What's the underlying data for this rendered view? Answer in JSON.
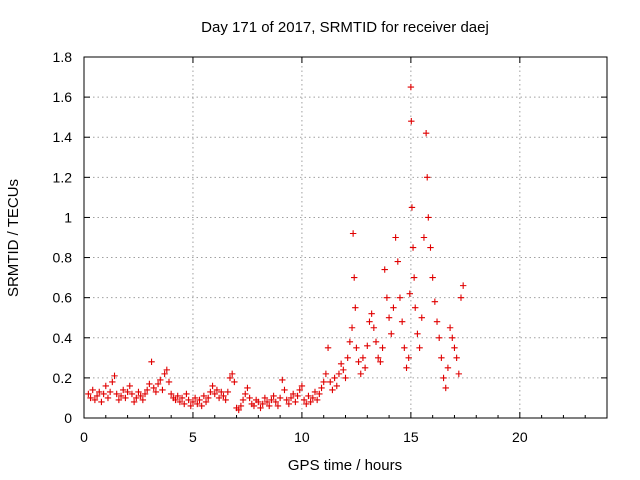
{
  "chart_data": {
    "type": "scatter",
    "title": "Day 171 of 2017, SRMTID for receiver daej",
    "xlabel": "GPS time / hours",
    "ylabel": "SRMTID / TECUs",
    "xlim": [
      0,
      24
    ],
    "ylim": [
      0,
      1.8
    ],
    "xticks": [
      0,
      5,
      10,
      15,
      20
    ],
    "xtick_labels": [
      "0",
      "5",
      "10",
      "15",
      "20"
    ],
    "yticks": [
      0,
      0.2,
      0.4,
      0.6,
      0.8,
      1,
      1.2,
      1.4,
      1.6,
      1.8
    ],
    "ytick_labels": [
      "0",
      "0.2",
      "0.4",
      "0.6",
      "0.8",
      "1",
      "1.2",
      "1.4",
      "1.6",
      "1.8"
    ],
    "grid": true,
    "marker": "+",
    "marker_color": "#e00000",
    "series": [
      {
        "name": "SRMTID",
        "points": [
          [
            0.2,
            0.12
          ],
          [
            0.3,
            0.1
          ],
          [
            0.4,
            0.14
          ],
          [
            0.5,
            0.09
          ],
          [
            0.6,
            0.11
          ],
          [
            0.7,
            0.13
          ],
          [
            0.8,
            0.08
          ],
          [
            0.9,
            0.12
          ],
          [
            1.0,
            0.16
          ],
          [
            1.1,
            0.1
          ],
          [
            1.2,
            0.13
          ],
          [
            1.3,
            0.18
          ],
          [
            1.4,
            0.21
          ],
          [
            1.5,
            0.12
          ],
          [
            1.6,
            0.09
          ],
          [
            1.7,
            0.11
          ],
          [
            1.8,
            0.14
          ],
          [
            1.9,
            0.1
          ],
          [
            2.0,
            0.13
          ],
          [
            2.1,
            0.16
          ],
          [
            2.2,
            0.12
          ],
          [
            2.3,
            0.08
          ],
          [
            2.4,
            0.1
          ],
          [
            2.5,
            0.13
          ],
          [
            2.6,
            0.11
          ],
          [
            2.7,
            0.09
          ],
          [
            2.8,
            0.12
          ],
          [
            2.9,
            0.14
          ],
          [
            3.0,
            0.17
          ],
          [
            3.1,
            0.28
          ],
          [
            3.2,
            0.15
          ],
          [
            3.3,
            0.13
          ],
          [
            3.4,
            0.17
          ],
          [
            3.5,
            0.19
          ],
          [
            3.6,
            0.14
          ],
          [
            3.7,
            0.22
          ],
          [
            3.8,
            0.24
          ],
          [
            3.9,
            0.18
          ],
          [
            4.0,
            0.12
          ],
          [
            4.1,
            0.1
          ],
          [
            4.2,
            0.09
          ],
          [
            4.3,
            0.11
          ],
          [
            4.4,
            0.08
          ],
          [
            4.5,
            0.1
          ],
          [
            4.6,
            0.07
          ],
          [
            4.7,
            0.12
          ],
          [
            4.8,
            0.09
          ],
          [
            4.9,
            0.06
          ],
          [
            5.0,
            0.08
          ],
          [
            5.1,
            0.1
          ],
          [
            5.2,
            0.07
          ],
          [
            5.3,
            0.09
          ],
          [
            5.4,
            0.06
          ],
          [
            5.5,
            0.11
          ],
          [
            5.6,
            0.08
          ],
          [
            5.7,
            0.1
          ],
          [
            5.8,
            0.13
          ],
          [
            5.9,
            0.16
          ],
          [
            6.0,
            0.12
          ],
          [
            6.1,
            0.14
          ],
          [
            6.2,
            0.1
          ],
          [
            6.3,
            0.13
          ],
          [
            6.4,
            0.11
          ],
          [
            6.5,
            0.09
          ],
          [
            6.6,
            0.13
          ],
          [
            6.7,
            0.2
          ],
          [
            6.8,
            0.22
          ],
          [
            6.9,
            0.18
          ],
          [
            7.0,
            0.05
          ],
          [
            7.1,
            0.04
          ],
          [
            7.2,
            0.06
          ],
          [
            7.3,
            0.09
          ],
          [
            7.4,
            0.12
          ],
          [
            7.5,
            0.15
          ],
          [
            7.6,
            0.1
          ],
          [
            7.7,
            0.07
          ],
          [
            7.8,
            0.06
          ],
          [
            7.9,
            0.09
          ],
          [
            8.0,
            0.08
          ],
          [
            8.1,
            0.05
          ],
          [
            8.2,
            0.07
          ],
          [
            8.3,
            0.1
          ],
          [
            8.4,
            0.08
          ],
          [
            8.5,
            0.06
          ],
          [
            8.6,
            0.09
          ],
          [
            8.7,
            0.11
          ],
          [
            8.8,
            0.08
          ],
          [
            8.9,
            0.06
          ],
          [
            9.0,
            0.1
          ],
          [
            9.1,
            0.19
          ],
          [
            9.2,
            0.14
          ],
          [
            9.3,
            0.09
          ],
          [
            9.4,
            0.07
          ],
          [
            9.5,
            0.1
          ],
          [
            9.6,
            0.12
          ],
          [
            9.7,
            0.08
          ],
          [
            9.8,
            0.11
          ],
          [
            9.9,
            0.14
          ],
          [
            10.0,
            0.16
          ],
          [
            10.1,
            0.09
          ],
          [
            10.2,
            0.07
          ],
          [
            10.3,
            0.11
          ],
          [
            10.4,
            0.08
          ],
          [
            10.5,
            0.1
          ],
          [
            10.6,
            0.13
          ],
          [
            10.7,
            0.09
          ],
          [
            10.8,
            0.12
          ],
          [
            10.9,
            0.15
          ],
          [
            11.0,
            0.18
          ],
          [
            11.1,
            0.22
          ],
          [
            11.2,
            0.35
          ],
          [
            11.3,
            0.18
          ],
          [
            11.4,
            0.14
          ],
          [
            11.5,
            0.2
          ],
          [
            11.6,
            0.16
          ],
          [
            11.7,
            0.22
          ],
          [
            11.8,
            0.27
          ],
          [
            11.9,
            0.24
          ],
          [
            12.0,
            0.2
          ],
          [
            12.1,
            0.3
          ],
          [
            12.2,
            0.38
          ],
          [
            12.3,
            0.45
          ],
          [
            12.35,
            0.92
          ],
          [
            12.4,
            0.7
          ],
          [
            12.45,
            0.55
          ],
          [
            12.5,
            0.35
          ],
          [
            12.6,
            0.28
          ],
          [
            12.7,
            0.22
          ],
          [
            12.8,
            0.3
          ],
          [
            12.9,
            0.25
          ],
          [
            13.0,
            0.36
          ],
          [
            13.1,
            0.48
          ],
          [
            13.2,
            0.52
          ],
          [
            13.3,
            0.45
          ],
          [
            13.4,
            0.38
          ],
          [
            13.5,
            0.3
          ],
          [
            13.6,
            0.28
          ],
          [
            13.7,
            0.35
          ],
          [
            13.8,
            0.74
          ],
          [
            13.9,
            0.6
          ],
          [
            14.0,
            0.5
          ],
          [
            14.1,
            0.42
          ],
          [
            14.2,
            0.55
          ],
          [
            14.3,
            0.9
          ],
          [
            14.4,
            0.78
          ],
          [
            14.5,
            0.6
          ],
          [
            14.6,
            0.48
          ],
          [
            14.7,
            0.35
          ],
          [
            14.8,
            0.25
          ],
          [
            14.9,
            0.3
          ],
          [
            14.95,
            0.62
          ],
          [
            15.0,
            1.65
          ],
          [
            15.02,
            1.48
          ],
          [
            15.05,
            1.05
          ],
          [
            15.1,
            0.85
          ],
          [
            15.15,
            0.7
          ],
          [
            15.2,
            0.55
          ],
          [
            15.3,
            0.42
          ],
          [
            15.4,
            0.35
          ],
          [
            15.5,
            0.5
          ],
          [
            15.6,
            0.9
          ],
          [
            15.7,
            1.42
          ],
          [
            15.75,
            1.2
          ],
          [
            15.8,
            1.0
          ],
          [
            15.9,
            0.85
          ],
          [
            16.0,
            0.7
          ],
          [
            16.1,
            0.58
          ],
          [
            16.2,
            0.48
          ],
          [
            16.3,
            0.4
          ],
          [
            16.4,
            0.3
          ],
          [
            16.5,
            0.2
          ],
          [
            16.6,
            0.15
          ],
          [
            16.7,
            0.25
          ],
          [
            16.8,
            0.45
          ],
          [
            16.9,
            0.4
          ],
          [
            17.0,
            0.35
          ],
          [
            17.1,
            0.3
          ],
          [
            17.2,
            0.22
          ],
          [
            17.3,
            0.6
          ],
          [
            17.4,
            0.66
          ]
        ]
      }
    ]
  }
}
